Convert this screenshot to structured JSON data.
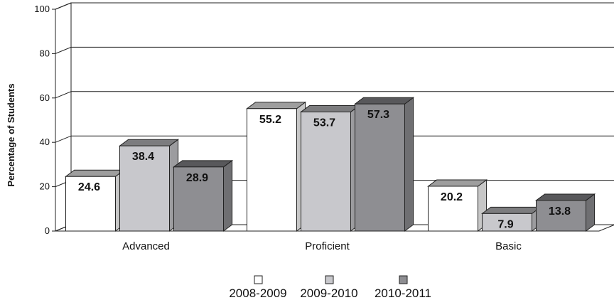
{
  "chart_data": {
    "type": "bar",
    "categories": [
      "Advanced",
      "Proficient",
      "Basic"
    ],
    "series": [
      {
        "name": "2008-2009",
        "values": [
          24.6,
          55.2,
          20.2
        ],
        "color": "#ffffff"
      },
      {
        "name": "2009-2010",
        "values": [
          38.4,
          53.7,
          7.9
        ],
        "color": "#c8c8cc"
      },
      {
        "name": "2010-2011",
        "values": [
          28.9,
          57.3,
          13.8
        ],
        "color": "#8e8e92"
      }
    ],
    "value_labels": [
      [
        "24.6",
        "55.2",
        "20.2"
      ],
      [
        "38.4",
        "53.7",
        "7.9"
      ],
      [
        "28.9",
        "57.3",
        "13.8"
      ]
    ],
    "ylabel": "Percentage of Students",
    "xlabel": "",
    "title": "",
    "ylim": [
      0,
      100
    ],
    "yticks": [
      "0",
      "20",
      "40",
      "60",
      "80",
      "100"
    ],
    "grid": true,
    "legend_position": "bottom-center",
    "style": "3d-bar"
  }
}
